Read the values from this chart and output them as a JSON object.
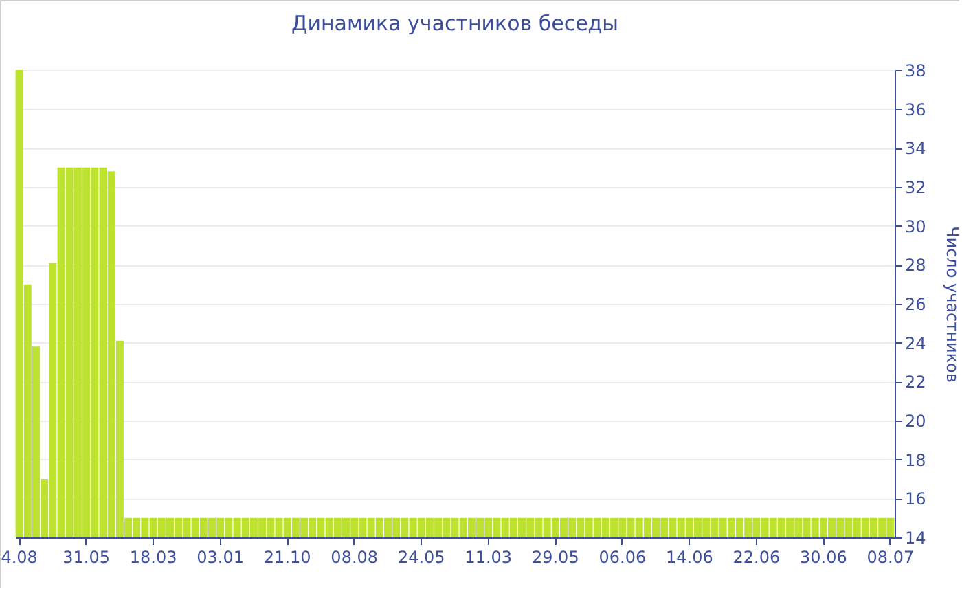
{
  "chart_data": {
    "type": "bar",
    "title": "Динамика участников беседы",
    "ylabel": "Число участников",
    "categories": [
      "4.08",
      null,
      null,
      null,
      null,
      null,
      null,
      null,
      "31.05",
      null,
      null,
      null,
      null,
      null,
      null,
      null,
      "18.03",
      null,
      null,
      null,
      null,
      null,
      null,
      null,
      "03.01",
      null,
      null,
      null,
      null,
      null,
      null,
      null,
      "21.10",
      null,
      null,
      null,
      null,
      null,
      null,
      null,
      "08.08",
      null,
      null,
      null,
      null,
      null,
      null,
      null,
      "24.05",
      null,
      null,
      null,
      null,
      null,
      null,
      null,
      "11.03",
      null,
      null,
      null,
      null,
      null,
      null,
      null,
      "29.05",
      null,
      null,
      null,
      null,
      null,
      null,
      null,
      "06.06",
      null,
      null,
      null,
      null,
      null,
      null,
      null,
      "14.06",
      null,
      null,
      null,
      null,
      null,
      null,
      null,
      "22.06",
      null,
      null,
      null,
      null,
      null,
      null,
      null,
      "30.06",
      null,
      null,
      null,
      null,
      null,
      null,
      null,
      "08.07"
    ],
    "values": [
      38,
      27,
      23.8,
      17,
      28.1,
      33,
      33,
      33,
      33,
      33,
      33,
      32.8,
      24.1,
      15,
      15,
      15,
      15,
      15,
      15,
      15,
      15,
      15,
      15,
      15,
      15,
      15,
      15,
      15,
      15,
      15,
      15,
      15,
      15,
      15,
      15,
      15,
      15,
      15,
      15,
      15,
      15,
      15,
      15,
      15,
      15,
      15,
      15,
      15,
      15,
      15,
      15,
      15,
      15,
      15,
      15,
      15,
      15,
      15,
      15,
      15,
      15,
      15,
      15,
      15,
      15,
      15,
      15,
      15,
      15,
      15,
      15,
      15,
      15,
      15,
      15,
      15,
      15,
      15,
      15,
      15,
      15,
      15,
      15,
      15,
      15,
      15,
      15,
      15,
      15,
      15,
      15,
      15,
      15,
      15,
      15,
      15,
      15,
      15,
      15,
      15,
      15,
      15,
      15,
      15,
      15
    ],
    "color": "#bde330",
    "ylim": [
      14,
      38
    ],
    "yticks": [
      14,
      16,
      18,
      20,
      22,
      24,
      26,
      28,
      30,
      32,
      34,
      36,
      38
    ],
    "grid": "y"
  }
}
